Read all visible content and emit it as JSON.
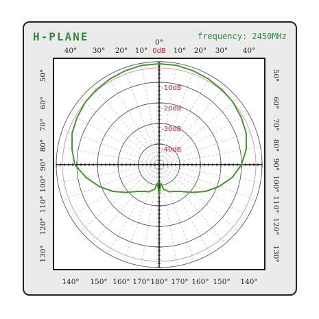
{
  "colors": {
    "card_fill": "#ebebeb",
    "card_stroke": "#222222",
    "title": "#2e8b3a",
    "trace": "#3f9a2a",
    "db_label": "#cc2222",
    "reference_circle": "#e58c9a",
    "grid_circle": "#555555",
    "dashed_spoke": "#b8b8b8",
    "axis": "#000000"
  },
  "chart_data": {
    "type": "line",
    "coordinate_system": "polar",
    "title": "H-PLANE",
    "subtitle": "frequency: 2450MHz",
    "radial_axis": {
      "unit": "dB",
      "range": [
        -50,
        0
      ],
      "rings": [
        0,
        -10,
        -20,
        -30,
        -40
      ],
      "ring_labels": [
        "0dB",
        "-10dB",
        "-20dB",
        "-30dB",
        "-40dB"
      ],
      "reference_ring_db": -3
    },
    "angular_axis": {
      "unit": "degree",
      "zero_direction": "top",
      "top_ticks": [
        "40°",
        "30°",
        "20°",
        "10°",
        "0°",
        "10°",
        "20°",
        "30°",
        "40°"
      ],
      "bottom_ticks": [
        "140°",
        "150°",
        "160°",
        "170°",
        "180°",
        "170°",
        "160°",
        "150°",
        "140°"
      ],
      "left_ticks": [
        "50°",
        "60°",
        "70°",
        "80°",
        "90°",
        "100°",
        "110°",
        "120°",
        "130°"
      ],
      "right_ticks": [
        "50°",
        "60°",
        "70°",
        "80°",
        "90°",
        "100°",
        "110°",
        "120°",
        "130°"
      ]
    },
    "grid": true,
    "legend": "none",
    "series": [
      {
        "angles_deg": [
          0,
          10,
          20,
          30,
          40,
          50,
          60,
          70,
          80,
          90,
          100,
          110,
          120,
          130,
          140,
          150,
          160,
          170,
          175,
          180,
          185,
          190,
          200,
          210,
          220,
          230,
          240,
          250,
          260,
          270,
          280,
          290,
          300,
          310,
          320,
          330,
          340,
          350
        ],
        "values_db": [
          -1,
          -1,
          -1.5,
          -2,
          -2.5,
          -3,
          -4,
          -5,
          -7,
          -10,
          -14,
          -19,
          -24,
          -29,
          -33,
          -35,
          -36,
          -38,
          -41,
          -35,
          -41,
          -38,
          -36,
          -35,
          -33,
          -29,
          -24,
          -19,
          -14,
          -9,
          -7,
          -5,
          -4,
          -3,
          -2.5,
          -2,
          -1.5,
          -1
        ]
      }
    ]
  }
}
